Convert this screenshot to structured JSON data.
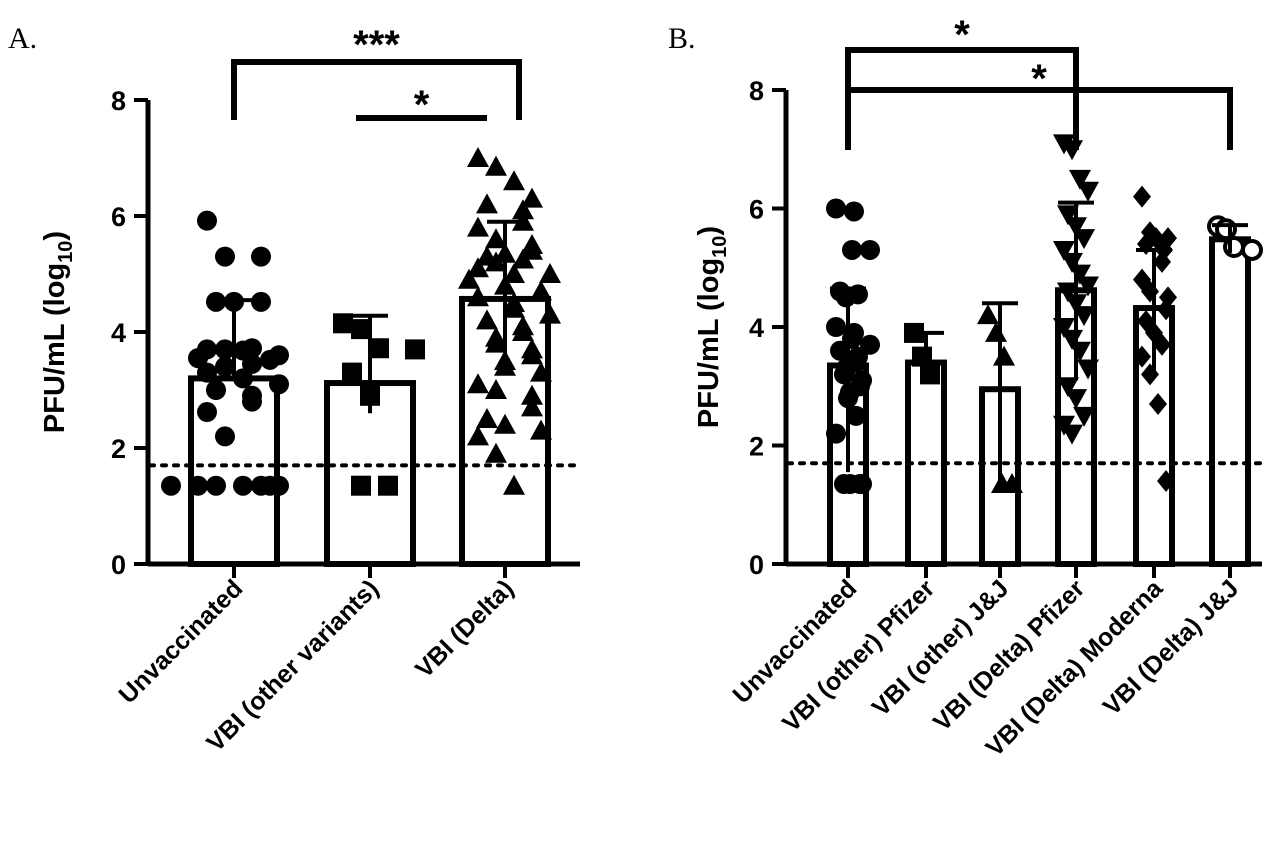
{
  "chart_data": [
    {
      "panel": "A.",
      "type": "bar",
      "ylabel": "PFU/mL (log",
      "ylabel_sub": "10",
      "ylabel_close": ")",
      "ylim": [
        0,
        8
      ],
      "yticks": [
        "0",
        "2",
        "4",
        "6",
        "8"
      ],
      "detection_limit": 1.7,
      "categories": [
        "Unvaccinated",
        "VBI (other variants)",
        "VBI (Delta)"
      ],
      "values": [
        3.2,
        3.12,
        4.57
      ],
      "error": [
        [
          3.2,
          4.55
        ],
        [
          2.6,
          4.28
        ],
        [
          3.25,
          5.9
        ]
      ],
      "markers": [
        "circle",
        "square",
        "triangle-up"
      ],
      "points": [
        [
          5.92,
          5.3,
          5.3,
          4.52,
          4.52,
          4.52,
          3.72,
          3.7,
          3.7,
          3.68,
          3.6,
          3.55,
          3.52,
          3.45,
          3.4,
          3.3,
          3.2,
          3.1,
          3.0,
          2.9,
          2.8,
          2.62,
          2.2,
          1.35,
          1.35,
          1.35,
          1.35,
          1.35,
          1.35,
          1.35
        ],
        [
          4.15,
          4.05,
          3.72,
          3.7,
          3.3,
          2.9,
          1.35,
          1.35
        ],
        [
          7.0,
          6.85,
          6.6,
          6.3,
          6.2,
          6.1,
          5.9,
          5.8,
          5.6,
          5.5,
          5.4,
          5.35,
          5.3,
          5.25,
          5.2,
          5.1,
          5.0,
          5.0,
          4.9,
          4.8,
          4.7,
          4.6,
          4.5,
          4.4,
          4.3,
          4.2,
          4.1,
          4.0,
          3.9,
          3.8,
          3.7,
          3.6,
          3.5,
          3.4,
          3.3,
          3.1,
          3.0,
          2.9,
          2.7,
          2.5,
          2.4,
          2.3,
          2.2,
          1.9,
          1.35
        ]
      ],
      "significance": [
        {
          "from": 0,
          "to": 2,
          "label": "***"
        },
        {
          "from": 1,
          "to": 2,
          "label": "*"
        }
      ]
    },
    {
      "panel": "B.",
      "type": "bar",
      "ylabel": "PFU/mL (log",
      "ylabel_sub": "10",
      "ylabel_close": ")",
      "ylim": [
        0,
        8
      ],
      "yticks": [
        "0",
        "2",
        "4",
        "6",
        "8"
      ],
      "detection_limit": 1.7,
      "categories": [
        "Unvaccinated",
        "VBI (other) Pfizer",
        "VBI (other) J&J",
        "VBI (Delta) Pfizer",
        "VBI (Delta) Moderna",
        "VBI (Delta) J&J"
      ],
      "values": [
        3.35,
        3.4,
        2.95,
        4.62,
        4.32,
        5.48
      ],
      "error": [
        [
          1.55,
          4.65
        ],
        [
          3.4,
          3.9
        ],
        [
          1.3,
          4.4
        ],
        [
          3.1,
          6.1
        ],
        [
          3.2,
          5.3
        ],
        [
          5.25,
          5.72
        ]
      ],
      "markers": [
        "circle",
        "square",
        "triangle-up",
        "triangle-down",
        "diamond",
        "circle-open"
      ],
      "points": [
        [
          6.0,
          5.95,
          5.3,
          5.3,
          4.6,
          4.55,
          4.5,
          4.0,
          3.9,
          3.8,
          3.7,
          3.6,
          3.5,
          3.4,
          3.3,
          3.2,
          3.1,
          3.0,
          2.9,
          2.8,
          2.5,
          2.2,
          1.35,
          1.35,
          1.35,
          1.35
        ],
        [
          3.9,
          3.5,
          3.2
        ],
        [
          4.2,
          3.9,
          3.5,
          1.35,
          1.35
        ],
        [
          7.1,
          7.0,
          6.5,
          6.3,
          5.9,
          5.7,
          5.5,
          5.3,
          5.1,
          4.9,
          4.7,
          4.6,
          4.4,
          4.2,
          4.0,
          3.8,
          3.6,
          3.3,
          3.0,
          2.8,
          2.5,
          2.35,
          2.2
        ],
        [
          6.2,
          5.6,
          5.5,
          5.5,
          5.4,
          5.3,
          5.1,
          4.8,
          4.6,
          4.5,
          4.3,
          4.1,
          3.9,
          3.7,
          3.5,
          3.2,
          2.7,
          1.4
        ],
        [
          5.7,
          5.65,
          5.35,
          5.3
        ]
      ],
      "significance": [
        {
          "from": 0,
          "to": 3,
          "label": "*"
        },
        {
          "from": 0,
          "to": 5,
          "label": "*"
        }
      ]
    }
  ]
}
